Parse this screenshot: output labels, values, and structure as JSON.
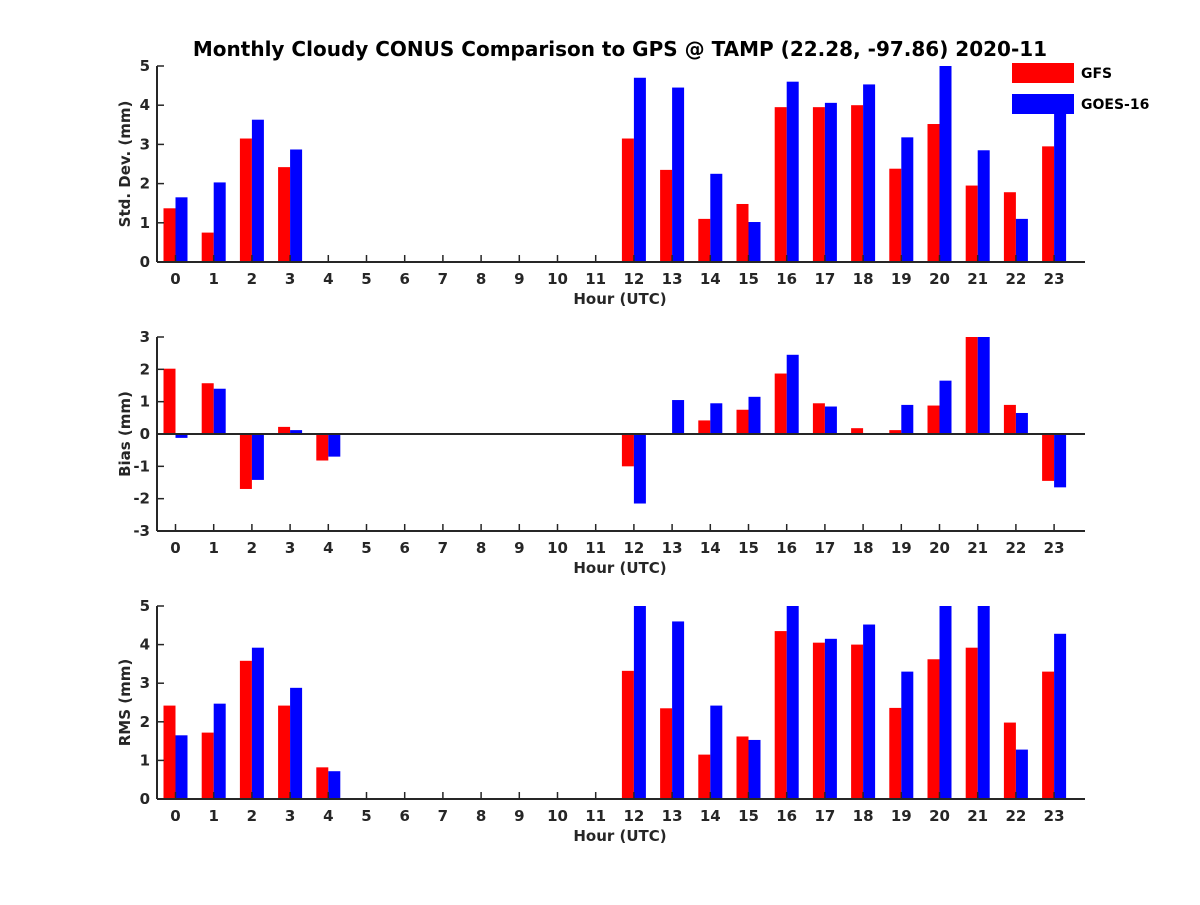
{
  "figure": {
    "title": "Monthly Cloudy CONUS Comparison to GPS @ TAMP (22.28, -97.86) 2020-11",
    "legend": {
      "placement": "top-right",
      "entries": [
        {
          "name": "GFS",
          "color": "#ff0000"
        },
        {
          "name": "GOES-16",
          "color": "#0000ff"
        }
      ]
    }
  },
  "chart_data": [
    {
      "type": "bar",
      "xlabel": "Hour (UTC)",
      "ylabel": "Std. Dev. (mm)",
      "ylim": [
        0,
        5
      ],
      "yticks": [
        0,
        1,
        2,
        3,
        4,
        5
      ],
      "categories": [
        "0",
        "1",
        "2",
        "3",
        "4",
        "5",
        "6",
        "7",
        "8",
        "9",
        "10",
        "11",
        "12",
        "13",
        "14",
        "15",
        "16",
        "17",
        "18",
        "19",
        "20",
        "21",
        "22",
        "23"
      ],
      "series": [
        {
          "name": "GFS",
          "color": "#ff0000",
          "values": [
            1.37,
            0.75,
            3.15,
            2.42,
            0,
            0,
            0,
            0,
            0,
            0,
            0,
            0,
            3.15,
            2.35,
            1.1,
            1.48,
            3.95,
            3.95,
            4.0,
            2.38,
            3.52,
            1.95,
            1.78,
            2.95
          ]
        },
        {
          "name": "GOES-16",
          "color": "#0000ff",
          "values": [
            1.65,
            2.03,
            3.63,
            2.87,
            0,
            0,
            0,
            0,
            0,
            0,
            0,
            0,
            4.7,
            4.45,
            2.25,
            1.02,
            4.6,
            4.06,
            4.53,
            3.18,
            5.0,
            2.85,
            1.1,
            4.0
          ]
        }
      ]
    },
    {
      "type": "bar",
      "xlabel": "Hour (UTC)",
      "ylabel": "Bias (mm)",
      "ylim": [
        -3,
        3
      ],
      "yticks": [
        -3,
        -2,
        -1,
        0,
        1,
        2,
        3
      ],
      "categories": [
        "0",
        "1",
        "2",
        "3",
        "4",
        "5",
        "6",
        "7",
        "8",
        "9",
        "10",
        "11",
        "12",
        "13",
        "14",
        "15",
        "16",
        "17",
        "18",
        "19",
        "20",
        "21",
        "22",
        "23"
      ],
      "series": [
        {
          "name": "GFS",
          "color": "#ff0000",
          "values": [
            2.02,
            1.57,
            -1.7,
            0.22,
            -0.82,
            0,
            0,
            0,
            0,
            0,
            0,
            0,
            -1.0,
            0.03,
            0.42,
            0.75,
            1.87,
            0.95,
            0.18,
            0.12,
            0.88,
            3.0,
            0.9,
            -1.45
          ]
        },
        {
          "name": "GOES-16",
          "color": "#0000ff",
          "values": [
            -0.12,
            1.4,
            -1.42,
            0.12,
            -0.7,
            0,
            0,
            0,
            0,
            0,
            0,
            0,
            -2.15,
            1.05,
            0.95,
            1.15,
            2.45,
            0.85,
            0,
            0.9,
            1.65,
            3.0,
            0.65,
            -1.65
          ]
        }
      ]
    },
    {
      "type": "bar",
      "xlabel": "Hour (UTC)",
      "ylabel": "RMS (mm)",
      "ylim": [
        0,
        5
      ],
      "yticks": [
        0,
        1,
        2,
        3,
        4,
        5
      ],
      "categories": [
        "0",
        "1",
        "2",
        "3",
        "4",
        "5",
        "6",
        "7",
        "8",
        "9",
        "10",
        "11",
        "12",
        "13",
        "14",
        "15",
        "16",
        "17",
        "18",
        "19",
        "20",
        "21",
        "22",
        "23"
      ],
      "series": [
        {
          "name": "GFS",
          "color": "#ff0000",
          "values": [
            2.42,
            1.72,
            3.58,
            2.42,
            0.82,
            0,
            0,
            0,
            0,
            0,
            0,
            0,
            3.32,
            2.35,
            1.15,
            1.62,
            4.35,
            4.05,
            4.0,
            2.36,
            3.62,
            3.92,
            1.98,
            3.3
          ]
        },
        {
          "name": "GOES-16",
          "color": "#0000ff",
          "values": [
            1.65,
            2.47,
            3.92,
            2.88,
            0.72,
            0,
            0,
            0,
            0,
            0,
            0,
            0,
            5.0,
            4.6,
            2.42,
            1.53,
            5.0,
            4.15,
            4.52,
            3.3,
            5.0,
            5.0,
            1.28,
            4.28
          ]
        }
      ]
    }
  ]
}
